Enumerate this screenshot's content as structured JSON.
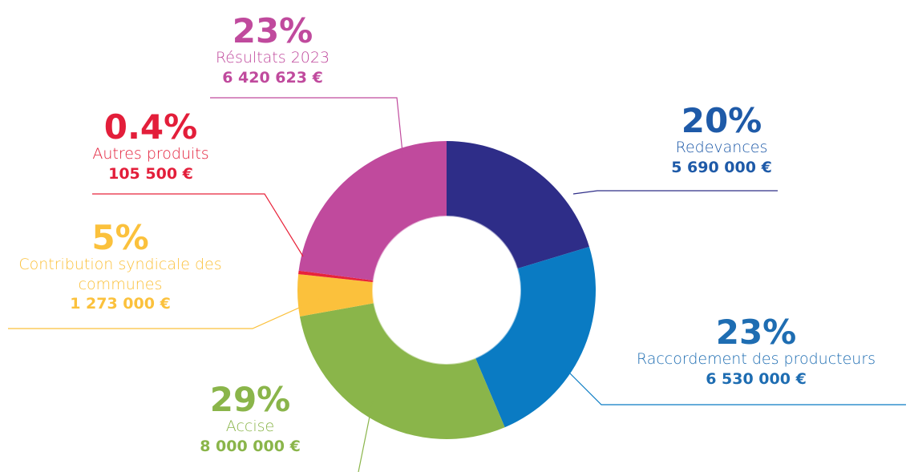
{
  "chart_data": {
    "type": "donut",
    "categories": [
      "Redevances",
      "Raccordement des producteurs",
      "Accise",
      "Contribution syndicale des communes",
      "Autres produits",
      "Résultats 2023"
    ],
    "values": [
      5690000,
      6530000,
      8000000,
      1273000,
      105500,
      6420623
    ],
    "value_labels": [
      "5 690 000 €",
      "6 530 000 €",
      "8 000 000 €",
      "1 273 000 €",
      "105 500 €",
      "6 420 623 €"
    ],
    "percent_labels": [
      "20%",
      "23%",
      "29%",
      "5%",
      "0.4%",
      "23%"
    ],
    "colors": [
      "#2e2d88",
      "#0a7bc3",
      "#8ab54a",
      "#fbc13c",
      "#e8233a",
      "#c04a9d"
    ],
    "label_colors": [
      "#1e5aa8",
      "#1e6db2",
      "#8ab54a",
      "#fbc13c",
      "#e31e3a",
      "#c04a9d"
    ]
  }
}
